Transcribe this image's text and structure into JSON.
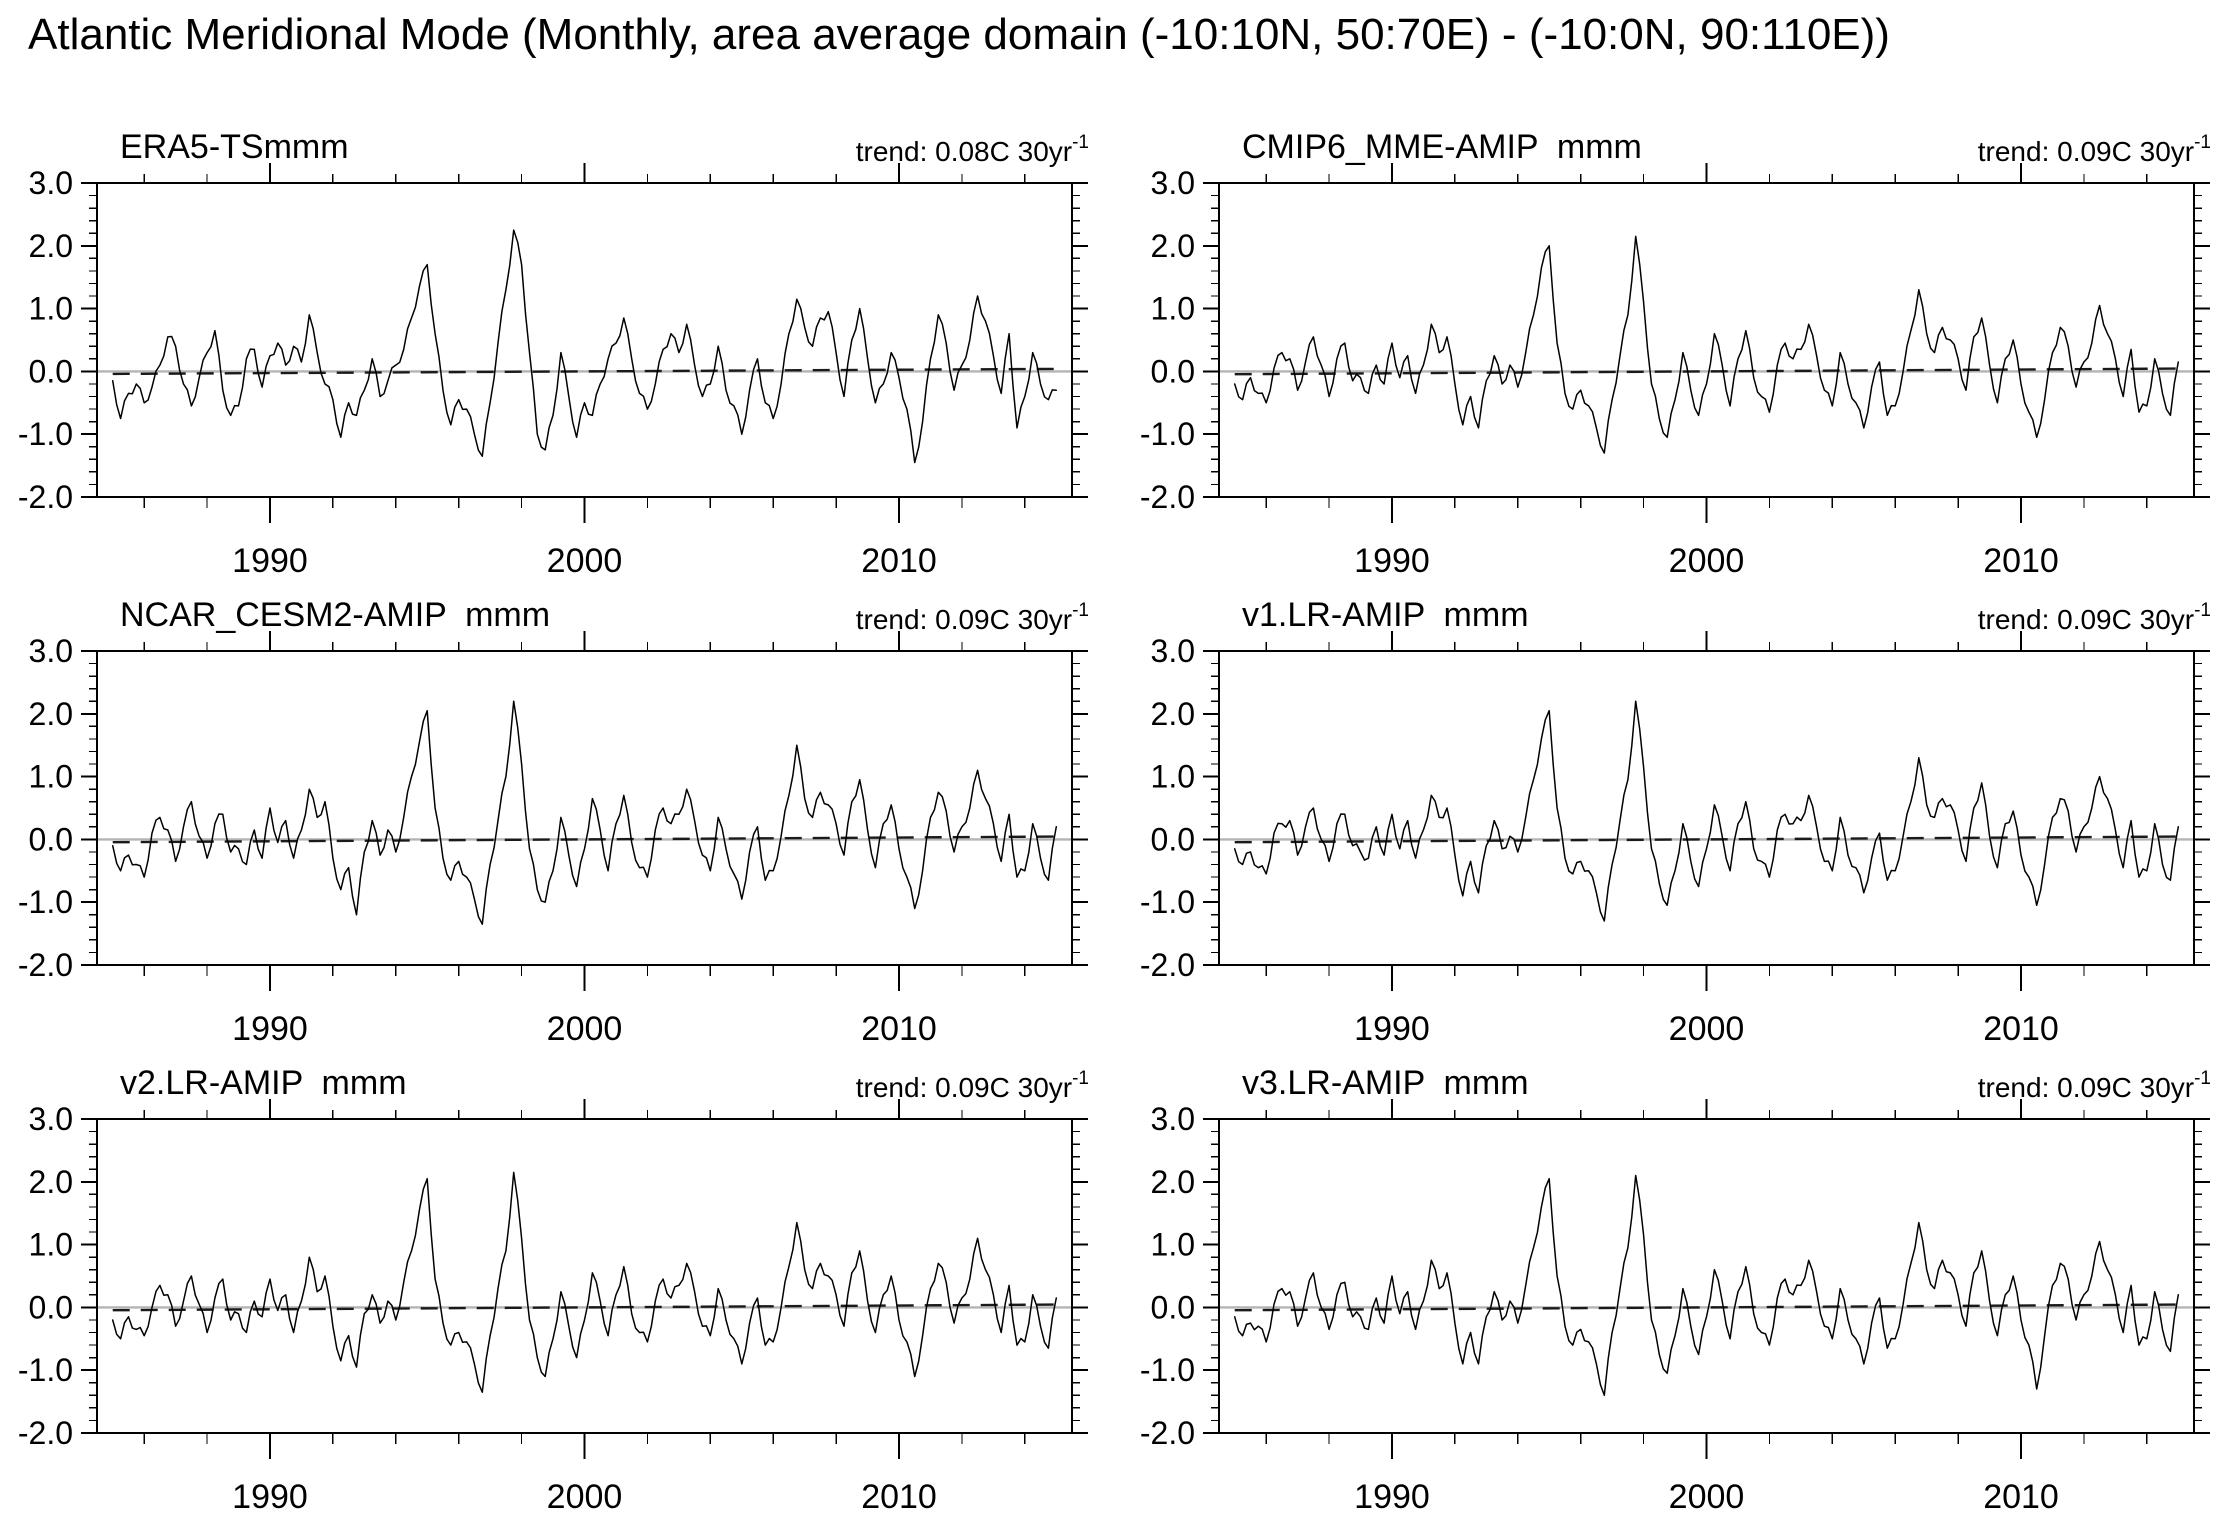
{
  "page_title": "Atlantic Meridional Mode (Monthly, area average domain (-10:10N, 50:70E) - (-10:0N, 90:110E))",
  "chart_data": {
    "type": "line",
    "layout": {
      "rows": 3,
      "cols": 2,
      "xlim": [
        1984.5,
        2015.5
      ],
      "ylim": [
        -2.0,
        3.0
      ],
      "x_major_ticks": [
        1990,
        2000,
        2010
      ],
      "x_minor_start": 1986,
      "x_minor_step": 2,
      "x_minor_end": 2014,
      "y_major_ticks": [
        3.0,
        2.0,
        1.0,
        0.0,
        -1.0,
        -2.0
      ],
      "y_tick_labels": [
        "3.0",
        "2.0",
        "1.0",
        "0.0",
        "-1.0",
        "-2.0"
      ],
      "y_minor_step": 0.2,
      "grid": false,
      "legend": "none",
      "line_color": "#000000",
      "zero_line_color": "#b4b4b4",
      "trend_line_color": "#1a1a1a",
      "trend_line_style": "dashed",
      "render_jitter": 0.08
    },
    "x": {
      "start": 1985.0,
      "step": 0.25,
      "n": 121,
      "units": "year"
    },
    "panels": [
      {
        "id": "era5",
        "title": "ERA5-TSmmm",
        "trend_label": "trend: 0.08C 30yr",
        "trend_exp": "-1",
        "trend_per_30yr": 0.08,
        "values": [
          -0.15,
          -0.75,
          -0.35,
          -0.2,
          -0.5,
          -0.25,
          0.1,
          0.55,
          0.4,
          -0.2,
          -0.55,
          -0.1,
          0.3,
          0.65,
          -0.3,
          -0.7,
          -0.55,
          0.2,
          0.35,
          -0.25,
          0.25,
          0.45,
          0.1,
          0.4,
          0.15,
          0.9,
          0.3,
          -0.2,
          -0.45,
          -1.05,
          -0.5,
          -0.7,
          -0.3,
          0.2,
          -0.4,
          -0.15,
          0.1,
          0.35,
          0.85,
          1.35,
          1.7,
          0.6,
          -0.3,
          -0.85,
          -0.45,
          -0.6,
          -1.0,
          -1.35,
          -0.5,
          0.45,
          1.3,
          2.25,
          1.7,
          0.3,
          -1.0,
          -1.25,
          -0.7,
          0.3,
          -0.4,
          -1.05,
          -0.5,
          -0.7,
          -0.2,
          0.2,
          0.45,
          0.85,
          0.2,
          -0.35,
          -0.6,
          -0.2,
          0.35,
          0.6,
          0.3,
          0.75,
          0.1,
          -0.4,
          -0.2,
          0.4,
          -0.3,
          -0.55,
          -1.0,
          -0.3,
          0.2,
          -0.5,
          -0.75,
          -0.2,
          0.6,
          1.15,
          0.7,
          0.4,
          0.85,
          0.95,
          0.3,
          -0.4,
          0.5,
          1.0,
          0.2,
          -0.5,
          -0.2,
          0.3,
          -0.1,
          -0.6,
          -1.45,
          -0.8,
          0.2,
          0.9,
          0.45,
          -0.3,
          0.1,
          0.5,
          1.2,
          0.8,
          0.25,
          -0.35,
          0.6,
          -0.9,
          -0.4,
          0.3,
          -0.2,
          -0.45,
          -0.3
        ]
      },
      {
        "id": "cmip6-mme",
        "title": "CMIP6_MME-AMIP  mmm",
        "trend_label": "trend: 0.09C 30yr",
        "trend_exp": "-1",
        "trend_per_30yr": 0.09,
        "values": [
          -0.2,
          -0.45,
          -0.1,
          -0.35,
          -0.5,
          0.05,
          0.3,
          0.2,
          -0.3,
          0.15,
          0.55,
          0.1,
          -0.4,
          0.2,
          0.45,
          -0.15,
          -0.1,
          -0.35,
          0.1,
          -0.2,
          0.45,
          -0.1,
          0.25,
          -0.35,
          0.1,
          0.75,
          0.3,
          0.55,
          -0.2,
          -0.85,
          -0.4,
          -0.9,
          -0.15,
          0.25,
          -0.2,
          0.1,
          -0.25,
          0.3,
          0.9,
          1.65,
          2.0,
          0.45,
          -0.35,
          -0.6,
          -0.3,
          -0.55,
          -0.9,
          -1.3,
          -0.45,
          0.25,
          0.9,
          2.15,
          1.1,
          -0.2,
          -0.75,
          -1.05,
          -0.45,
          0.3,
          -0.3,
          -0.7,
          -0.2,
          0.6,
          0.1,
          -0.55,
          0.2,
          0.65,
          -0.1,
          -0.4,
          -0.65,
          0.1,
          0.45,
          0.2,
          0.35,
          0.75,
          0.25,
          -0.3,
          -0.55,
          0.3,
          -0.2,
          -0.5,
          -0.9,
          -0.25,
          0.15,
          -0.7,
          -0.55,
          0.0,
          0.65,
          1.3,
          0.6,
          0.3,
          0.7,
          0.5,
          0.2,
          -0.3,
          0.55,
          0.85,
          0.1,
          -0.5,
          0.2,
          0.5,
          -0.2,
          -0.65,
          -1.05,
          -0.45,
          0.3,
          0.7,
          0.4,
          -0.25,
          0.15,
          0.45,
          1.05,
          0.6,
          0.2,
          -0.4,
          0.35,
          -0.65,
          -0.55,
          0.2,
          -0.35,
          -0.7,
          0.15
        ]
      },
      {
        "id": "ncar-cesm2",
        "title": "NCAR_CESM2-AMIP  mmm",
        "trend_label": "trend: 0.09C 30yr",
        "trend_exp": "-1",
        "trend_per_30yr": 0.09,
        "values": [
          -0.1,
          -0.5,
          -0.25,
          -0.4,
          -0.6,
          0.1,
          0.35,
          0.15,
          -0.35,
          0.2,
          0.6,
          0.05,
          -0.3,
          0.25,
          0.4,
          -0.2,
          -0.15,
          -0.4,
          0.15,
          -0.3,
          0.5,
          -0.05,
          0.3,
          -0.3,
          0.15,
          0.8,
          0.35,
          0.6,
          -0.3,
          -0.8,
          -0.45,
          -1.2,
          -0.2,
          0.3,
          -0.25,
          0.15,
          -0.2,
          0.35,
          1.0,
          1.55,
          2.05,
          0.5,
          -0.3,
          -0.65,
          -0.35,
          -0.6,
          -0.95,
          -1.35,
          -0.4,
          0.3,
          1.0,
          2.2,
          1.2,
          -0.15,
          -0.8,
          -1.0,
          -0.5,
          0.35,
          -0.25,
          -0.75,
          -0.15,
          0.65,
          0.15,
          -0.5,
          0.25,
          0.7,
          -0.05,
          -0.45,
          -0.6,
          0.15,
          0.5,
          0.25,
          0.4,
          0.8,
          0.3,
          -0.25,
          -0.5,
          0.35,
          -0.15,
          -0.55,
          -0.95,
          -0.2,
          0.2,
          -0.65,
          -0.5,
          0.05,
          0.7,
          1.5,
          0.65,
          0.35,
          0.75,
          0.55,
          0.25,
          -0.25,
          0.6,
          0.95,
          0.15,
          -0.45,
          0.25,
          0.55,
          -0.15,
          -0.6,
          -1.1,
          -0.5,
          0.35,
          0.75,
          0.45,
          -0.2,
          0.2,
          0.5,
          1.1,
          0.65,
          0.25,
          -0.35,
          0.4,
          -0.6,
          -0.5,
          0.25,
          -0.3,
          -0.65,
          0.2
        ]
      },
      {
        "id": "v1-lr",
        "title": "v1.LR-AMIP  mmm",
        "trend_label": "trend: 0.09C 30yr",
        "trend_exp": "-1",
        "trend_per_30yr": 0.09,
        "values": [
          -0.15,
          -0.4,
          -0.2,
          -0.45,
          -0.55,
          0.1,
          0.25,
          0.3,
          -0.25,
          0.2,
          0.5,
          0.0,
          -0.35,
          0.25,
          0.4,
          -0.1,
          -0.2,
          -0.3,
          0.2,
          -0.25,
          0.4,
          -0.15,
          0.3,
          -0.3,
          0.15,
          0.7,
          0.35,
          0.5,
          -0.25,
          -0.9,
          -0.35,
          -0.85,
          -0.1,
          0.3,
          -0.15,
          0.05,
          -0.2,
          0.35,
          0.95,
          1.6,
          2.05,
          0.5,
          -0.3,
          -0.55,
          -0.35,
          -0.5,
          -0.85,
          -1.3,
          -0.4,
          0.3,
          0.95,
          2.2,
          1.15,
          -0.15,
          -0.7,
          -1.05,
          -0.5,
          0.25,
          -0.35,
          -0.75,
          -0.15,
          0.55,
          0.05,
          -0.5,
          0.25,
          0.6,
          -0.15,
          -0.35,
          -0.6,
          0.15,
          0.4,
          0.25,
          0.3,
          0.7,
          0.2,
          -0.35,
          -0.5,
          0.35,
          -0.25,
          -0.45,
          -0.85,
          -0.3,
          0.1,
          -0.65,
          -0.5,
          0.05,
          0.6,
          1.3,
          0.55,
          0.35,
          0.65,
          0.55,
          0.15,
          -0.35,
          0.5,
          0.9,
          0.05,
          -0.45,
          0.25,
          0.45,
          -0.25,
          -0.6,
          -1.05,
          -0.4,
          0.35,
          0.65,
          0.45,
          -0.2,
          0.2,
          0.5,
          1.0,
          0.65,
          0.15,
          -0.45,
          0.3,
          -0.6,
          -0.5,
          0.25,
          -0.4,
          -0.65,
          0.2
        ]
      },
      {
        "id": "v2-lr",
        "title": "v2.LR-AMIP  mmm",
        "trend_label": "trend: 0.09C 30yr",
        "trend_exp": "-1",
        "trend_per_30yr": 0.09,
        "values": [
          -0.2,
          -0.5,
          -0.15,
          -0.35,
          -0.45,
          0.0,
          0.35,
          0.2,
          -0.3,
          0.1,
          0.5,
          0.05,
          -0.4,
          0.15,
          0.45,
          -0.2,
          -0.1,
          -0.4,
          0.1,
          -0.15,
          0.45,
          -0.05,
          0.2,
          -0.4,
          0.1,
          0.8,
          0.25,
          0.5,
          -0.3,
          -0.85,
          -0.45,
          -0.95,
          -0.1,
          0.2,
          -0.25,
          0.1,
          -0.2,
          0.4,
          0.9,
          1.55,
          2.05,
          0.45,
          -0.25,
          -0.6,
          -0.4,
          -0.55,
          -0.9,
          -1.35,
          -0.45,
          0.3,
          0.9,
          2.15,
          1.1,
          -0.2,
          -0.8,
          -1.1,
          -0.5,
          0.25,
          -0.3,
          -0.8,
          -0.2,
          0.55,
          0.1,
          -0.45,
          0.2,
          0.65,
          -0.1,
          -0.4,
          -0.55,
          0.1,
          0.45,
          0.15,
          0.35,
          0.7,
          0.25,
          -0.3,
          -0.45,
          0.3,
          -0.2,
          -0.5,
          -0.9,
          -0.25,
          0.15,
          -0.6,
          -0.55,
          0.0,
          0.65,
          1.35,
          0.6,
          0.3,
          0.7,
          0.5,
          0.2,
          -0.3,
          0.55,
          0.9,
          0.1,
          -0.4,
          0.2,
          0.5,
          -0.2,
          -0.55,
          -1.1,
          -0.45,
          0.3,
          0.7,
          0.4,
          -0.25,
          0.15,
          0.45,
          1.1,
          0.6,
          0.2,
          -0.4,
          0.35,
          -0.6,
          -0.55,
          0.2,
          -0.3,
          -0.65,
          0.15
        ]
      },
      {
        "id": "v3-lr",
        "title": "v3.LR-AMIP  mmm",
        "trend_label": "trend: 0.09C 30yr",
        "trend_exp": "-1",
        "trend_per_30yr": 0.09,
        "values": [
          -0.15,
          -0.45,
          -0.25,
          -0.3,
          -0.55,
          0.05,
          0.3,
          0.25,
          -0.3,
          0.15,
          0.55,
          0.0,
          -0.35,
          0.2,
          0.4,
          -0.15,
          -0.15,
          -0.35,
          0.15,
          -0.25,
          0.5,
          -0.1,
          0.25,
          -0.35,
          0.1,
          0.75,
          0.3,
          0.55,
          -0.25,
          -0.9,
          -0.4,
          -0.9,
          -0.15,
          0.25,
          -0.2,
          0.1,
          -0.25,
          0.35,
          0.95,
          1.6,
          2.05,
          0.5,
          -0.3,
          -0.6,
          -0.35,
          -0.55,
          -0.9,
          -1.4,
          -0.4,
          0.3,
          0.95,
          2.1,
          1.15,
          -0.2,
          -0.75,
          -1.05,
          -0.45,
          0.3,
          -0.3,
          -0.75,
          -0.15,
          0.6,
          0.1,
          -0.5,
          0.25,
          0.65,
          -0.1,
          -0.4,
          -0.6,
          0.15,
          0.45,
          0.2,
          0.35,
          0.75,
          0.25,
          -0.3,
          -0.5,
          0.3,
          -0.2,
          -0.5,
          -0.9,
          -0.25,
          0.15,
          -0.65,
          -0.5,
          0.05,
          0.7,
          1.35,
          0.6,
          0.3,
          0.75,
          0.55,
          0.2,
          -0.3,
          0.55,
          0.9,
          0.1,
          -0.45,
          0.2,
          0.5,
          -0.2,
          -0.6,
          -1.3,
          -0.45,
          0.35,
          0.7,
          0.45,
          -0.2,
          0.2,
          0.5,
          1.05,
          0.6,
          0.2,
          -0.4,
          0.35,
          -0.6,
          -0.5,
          0.25,
          -0.35,
          -0.7,
          0.2
        ]
      }
    ]
  }
}
